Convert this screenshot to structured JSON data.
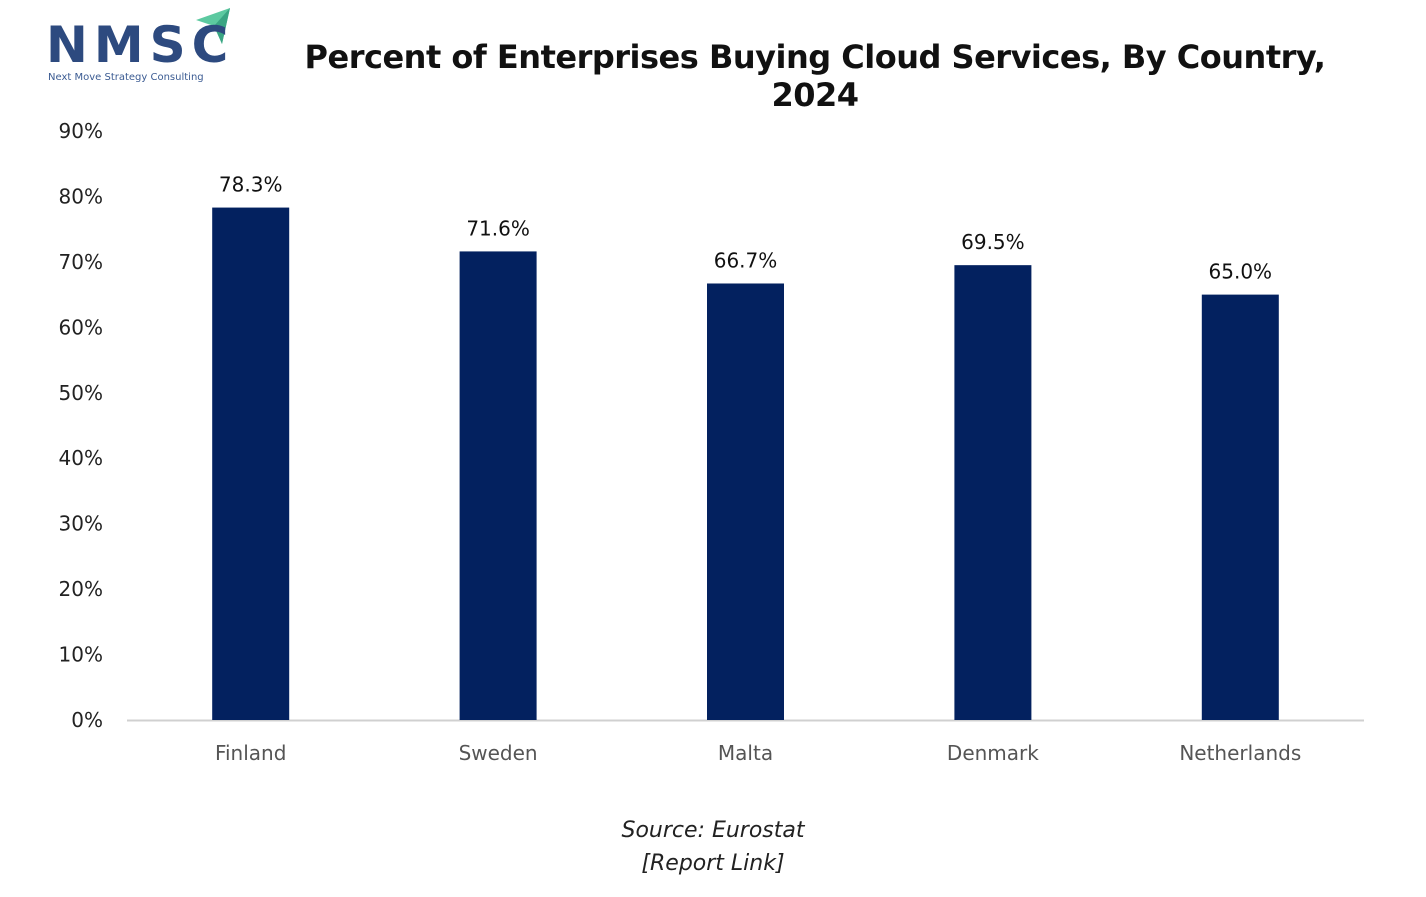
{
  "logo": {
    "name": "NMSC",
    "tagline": "Next Move Strategy Consulting",
    "primary_color": "#2d4a7f",
    "accent_color": "#5cc9a0"
  },
  "source": {
    "text": "Source: Eurostat",
    "link_text": "[Report Link]"
  },
  "chart_data": {
    "type": "bar",
    "title": "Percent of Enterprises Buying Cloud Services, By Country, 2024",
    "xlabel": "",
    "ylabel": "",
    "categories": [
      "Finland",
      "Sweden",
      "Malta",
      "Denmark",
      "Netherlands"
    ],
    "values": [
      78.3,
      71.6,
      66.7,
      69.5,
      65.0
    ],
    "data_labels": [
      "78.3%",
      "71.6%",
      "66.7%",
      "69.5%",
      "65.0%"
    ],
    "ylim": [
      0,
      90
    ],
    "yticks": [
      0,
      10,
      20,
      30,
      40,
      50,
      60,
      70,
      80,
      90
    ],
    "ytick_labels": [
      "0%",
      "10%",
      "20%",
      "30%",
      "40%",
      "50%",
      "60%",
      "70%",
      "80%",
      "90%"
    ],
    "grid": false,
    "legend": "none",
    "bar_color": "#03215f",
    "axis_color": "#d0d0d0"
  }
}
